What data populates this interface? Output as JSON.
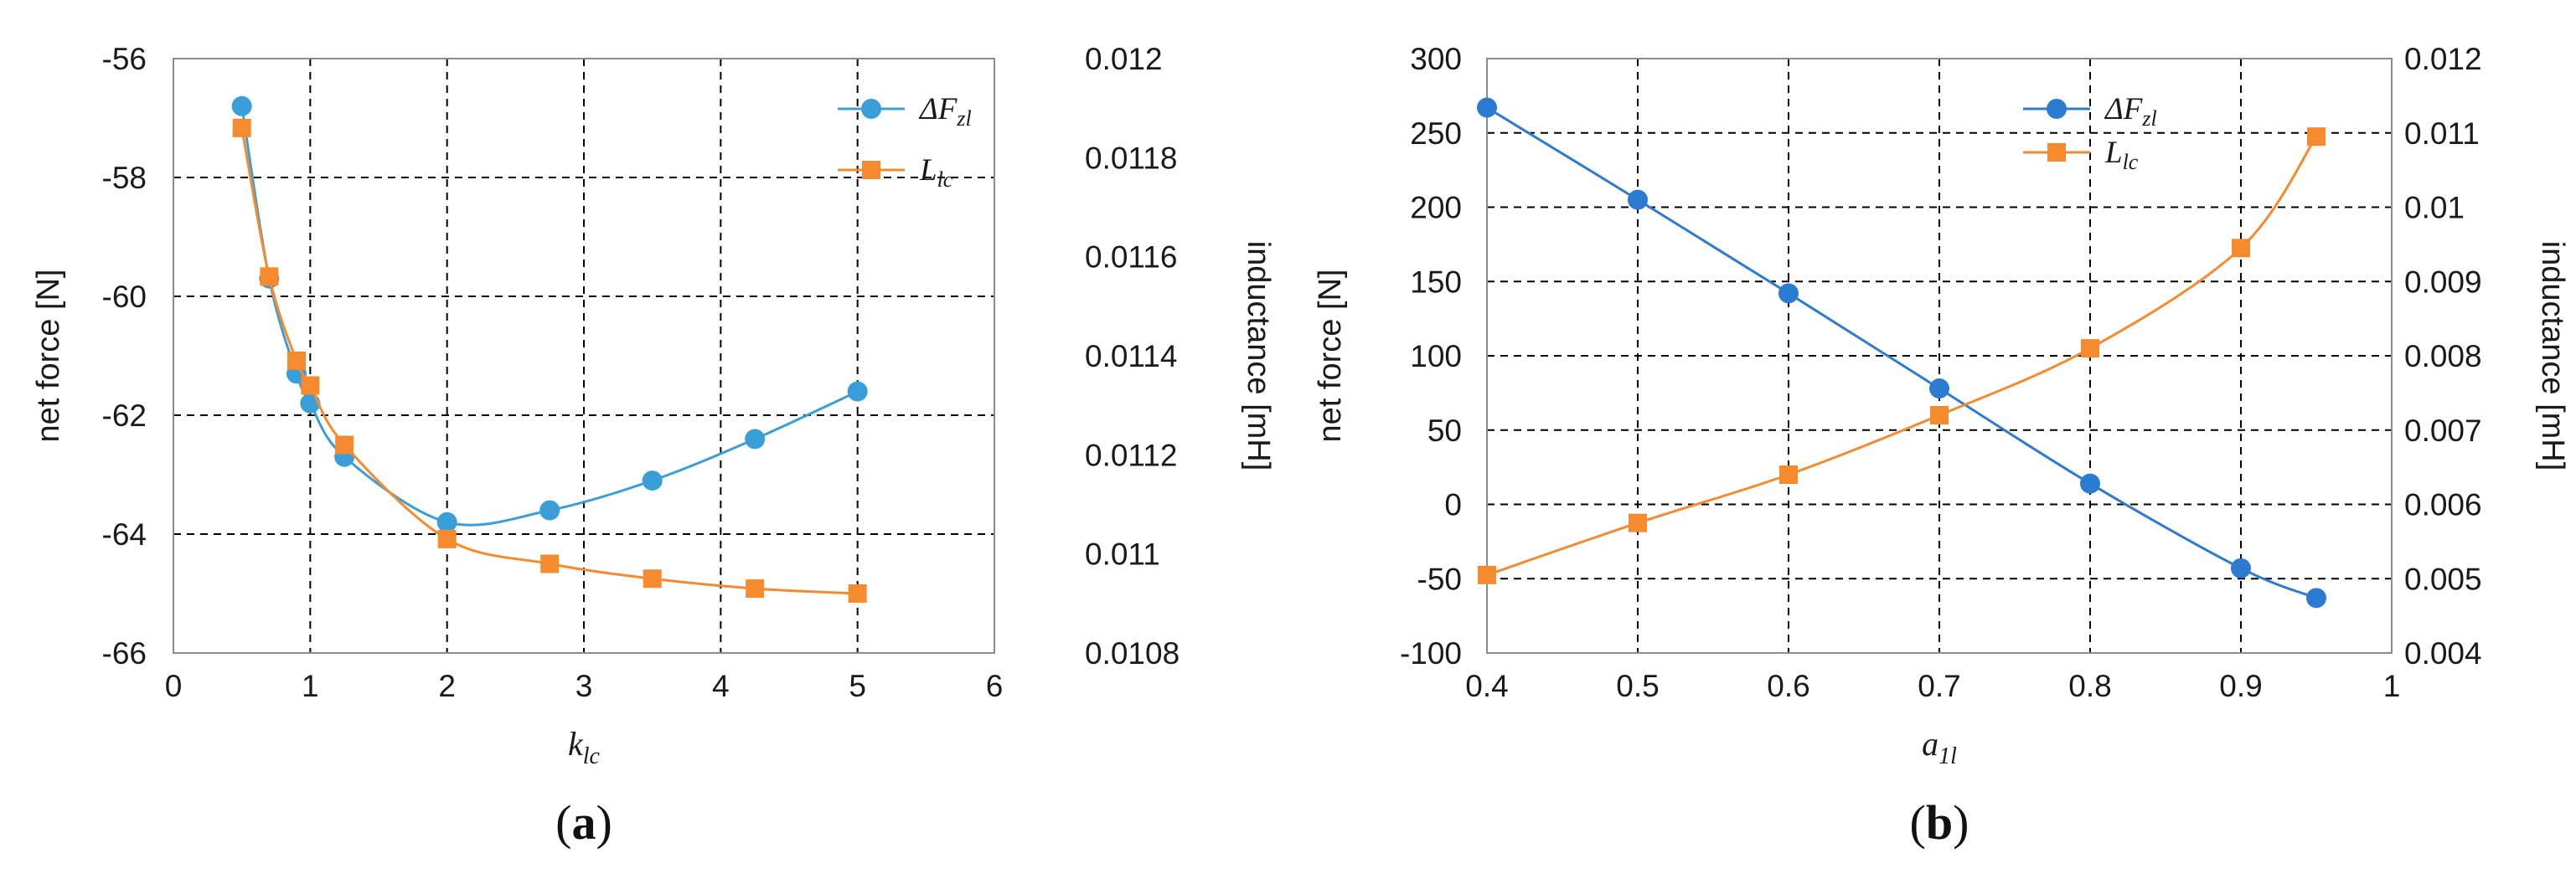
{
  "chart_data": [
    {
      "type": "line",
      "panel": "a",
      "caption": {
        "open": "(",
        "letter": "a",
        "close": ")"
      },
      "xlabel": {
        "base": "k",
        "sub": "lc"
      },
      "ylabel_left": "net force [N]",
      "ylabel_right": "inductance [mH]",
      "xlim": [
        0,
        6
      ],
      "x_ticks": [
        "0",
        "1",
        "2",
        "3",
        "4",
        "5",
        "6"
      ],
      "ylim_left": [
        -66,
        -56
      ],
      "y_ticks_left": [
        "-56",
        "-58",
        "-60",
        "-62",
        "-64",
        "-66"
      ],
      "ylim_right": [
        0.0108,
        0.012
      ],
      "y_ticks_right": [
        "0.012",
        "0.0118",
        "0.0116",
        "0.0114",
        "0.0112",
        "0.011",
        "0.0108"
      ],
      "grid": true,
      "legend_position": "top-right",
      "series": [
        {
          "name": "ΔF_zl",
          "label_base": "ΔF",
          "label_sub": "zl",
          "axis": "left",
          "marker": "circle",
          "color": "#3a9fd8",
          "x": [
            0.5,
            0.7,
            0.9,
            1.0,
            1.25,
            2.0,
            2.75,
            3.5,
            4.25,
            5.0
          ],
          "values": [
            -56.8,
            -59.7,
            -61.3,
            -61.8,
            -62.7,
            -63.8,
            -63.6,
            -63.1,
            -62.4,
            -61.6
          ]
        },
        {
          "name": "L_lc",
          "label_base": "L",
          "label_sub": "lc",
          "axis": "right",
          "marker": "square",
          "color": "#f58a2e",
          "x": [
            0.5,
            0.7,
            0.9,
            1.0,
            1.25,
            2.0,
            2.75,
            3.5,
            4.25,
            5.0
          ],
          "values": [
            0.01186,
            0.01156,
            0.01139,
            0.01134,
            0.01122,
            0.01103,
            0.01098,
            0.01095,
            0.01093,
            0.01092
          ]
        }
      ]
    },
    {
      "type": "line",
      "panel": "b",
      "caption": {
        "open": "(",
        "letter": "b",
        "close": ")"
      },
      "xlabel": {
        "base": "a",
        "sub": "1l"
      },
      "ylabel_left": "net force [N]",
      "ylabel_right": "inductance [mH]",
      "xlim": [
        0.4,
        1
      ],
      "x_ticks": [
        "0.4",
        "0.5",
        "0.6",
        "0.7",
        "0.8",
        "0.9",
        "1"
      ],
      "ylim_left": [
        -100,
        300
      ],
      "y_ticks_left": [
        "300",
        "250",
        "200",
        "150",
        "100",
        "50",
        "0",
        "-50",
        "-100"
      ],
      "ylim_right": [
        0.004,
        0.012
      ],
      "y_ticks_right": [
        "0.012",
        "0.011",
        "0.01",
        "0.009",
        "0.008",
        "0.007",
        "0.006",
        "0.005",
        "0.004"
      ],
      "grid": true,
      "legend_position": "top-right",
      "series": [
        {
          "name": "ΔF_zl",
          "label_base": "ΔF",
          "label_sub": "zl",
          "axis": "left",
          "marker": "circle",
          "color": "#2b7bd0",
          "x": [
            0.4,
            0.5,
            0.6,
            0.7,
            0.8,
            0.9,
            0.95
          ],
          "values": [
            267,
            205,
            142,
            78,
            14,
            -43,
            -63
          ]
        },
        {
          "name": "L_lc",
          "label_base": "L",
          "label_sub": "lc",
          "axis": "right",
          "marker": "square",
          "color": "#f58a2e",
          "x": [
            0.4,
            0.5,
            0.6,
            0.7,
            0.8,
            0.9,
            0.95
          ],
          "values": [
            0.00505,
            0.00575,
            0.0064,
            0.0072,
            0.0081,
            0.00945,
            0.01095
          ]
        }
      ]
    }
  ]
}
